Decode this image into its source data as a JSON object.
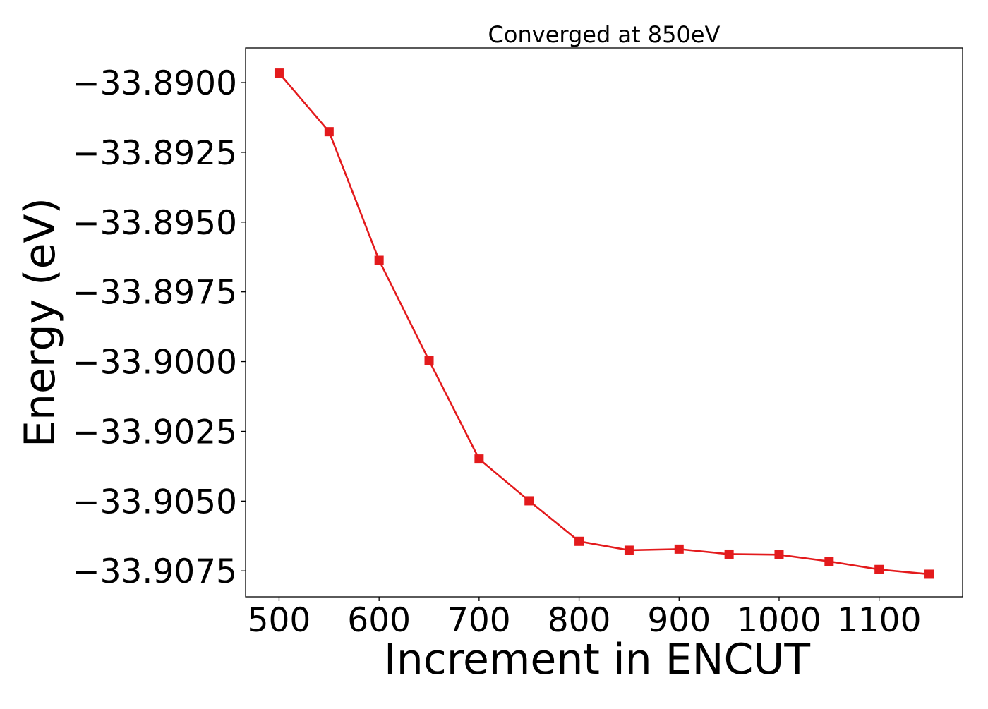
{
  "chart_data": {
    "type": "line",
    "title": "Converged at 850eV",
    "xlabel": "Increment in ENCUT",
    "ylabel": "Energy (eV)",
    "xlim": [
      466.5,
      1183.5
    ],
    "ylim": [
      -33.90843,
      -33.88876
    ],
    "xticks": [
      500,
      600,
      700,
      800,
      900,
      1000,
      1100
    ],
    "xtick_labels": [
      "500",
      "600",
      "700",
      "800",
      "900",
      "1000",
      "1100"
    ],
    "yticks": [
      -33.89,
      -33.8925,
      -33.895,
      -33.8975,
      -33.9,
      -33.9025,
      -33.905,
      -33.9075
    ],
    "ytick_labels": [
      "−33.8900",
      "−33.8925",
      "−33.8950",
      "−33.8975",
      "−33.9000",
      "−33.9025",
      "−33.9050",
      "−33.9075"
    ],
    "grid": false,
    "series": [
      {
        "color": "#e31a1c",
        "marker": "square",
        "x": [
          500,
          550,
          600,
          650,
          700,
          750,
          800,
          850,
          900,
          950,
          1000,
          1050,
          1100,
          1150
        ],
        "y": [
          -33.88966,
          -33.89176,
          -33.89637,
          -33.89996,
          -33.90349,
          -33.90499,
          -33.90644,
          -33.90676,
          -33.90672,
          -33.9069,
          -33.90692,
          -33.90716,
          -33.90745,
          -33.90762
        ]
      }
    ]
  }
}
